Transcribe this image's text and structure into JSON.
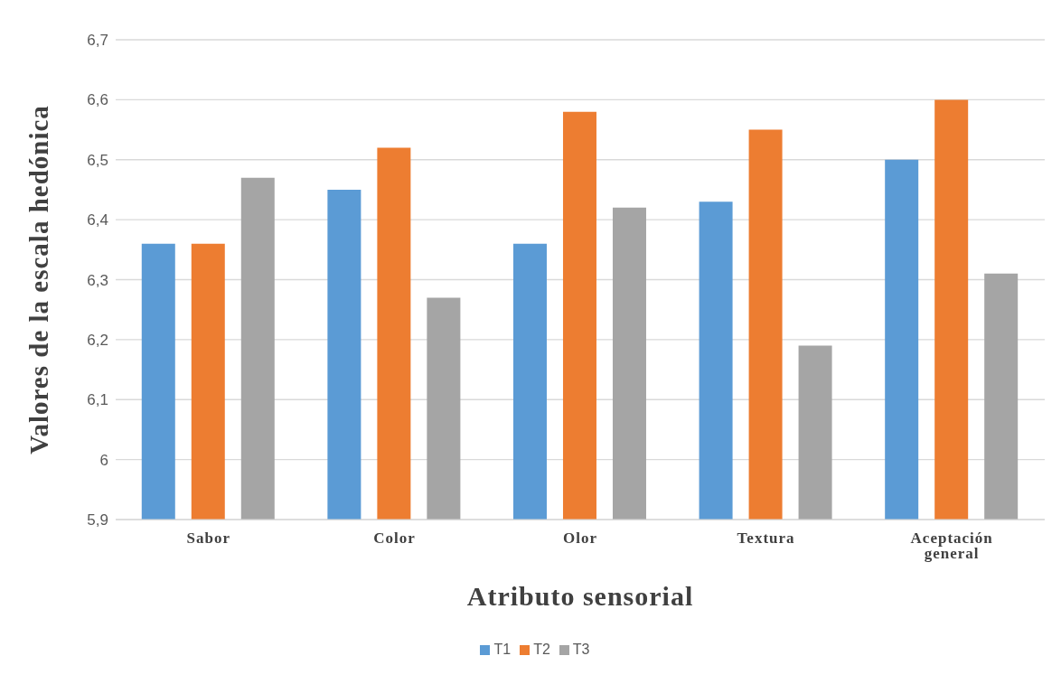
{
  "chart_data": {
    "type": "bar",
    "xlabel": "Atributo sensorial",
    "ylabel": "Valores de la escala hedónica",
    "categories": [
      "Sabor",
      "Color",
      "Olor",
      "Textura",
      "Aceptación general"
    ],
    "series": [
      {
        "name": "T1",
        "color": "#5b9bd5",
        "values": [
          6.36,
          6.45,
          6.36,
          6.43,
          6.5
        ]
      },
      {
        "name": "T2",
        "color": "#ed7d31",
        "values": [
          6.36,
          6.52,
          6.58,
          6.55,
          6.6
        ]
      },
      {
        "name": "T3",
        "color": "#a5a5a5",
        "values": [
          6.47,
          6.27,
          6.42,
          6.19,
          6.31
        ]
      }
    ],
    "ylim": [
      5.9,
      6.7
    ],
    "yticks": [
      {
        "value": 5.9,
        "label": "5,9"
      },
      {
        "value": 6,
        "label": "6"
      },
      {
        "value": 6.1,
        "label": "6,1"
      },
      {
        "value": 6.2,
        "label": "6,2"
      },
      {
        "value": 6.3,
        "label": "6,3"
      },
      {
        "value": 6.4,
        "label": "6,4"
      },
      {
        "value": 6.5,
        "label": "6,5"
      },
      {
        "value": 6.6,
        "label": "6,6"
      },
      {
        "value": 6.7,
        "label": "6,7"
      }
    ],
    "grid": "y",
    "legend": "bottom"
  }
}
